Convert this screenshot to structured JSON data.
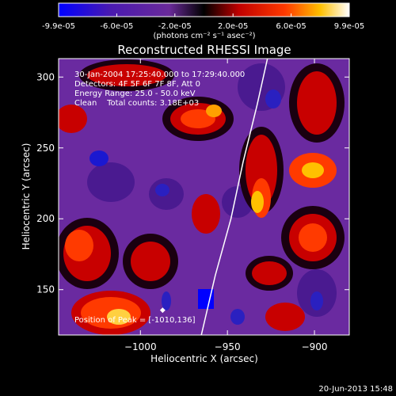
{
  "colorbar": {
    "ticks": [
      "-9.9e-05",
      "-6.0e-05",
      "-2.0e-05",
      "2.0e-05",
      "6.0e-05",
      "9.9e-05"
    ],
    "unit_label": "(photons cm⁻² s⁻¹ asec⁻²)",
    "colors": [
      "#0000ff",
      "#5a1aa8",
      "#6d2aa0",
      "#000000",
      "#c80000",
      "#ff3a00",
      "#ffc000",
      "#ffffff"
    ]
  },
  "chart_data": {
    "type": "heatmap",
    "title": "Reconstructed RHESSI Image",
    "xlabel": "Heliocentric X (arcsec)",
    "ylabel": "Heliocentric Y (arcsec)",
    "xlim": [
      -1047,
      -880
    ],
    "ylim": [
      118,
      313
    ],
    "xticks": [
      -1000,
      -950,
      -900
    ],
    "yticks": [
      150,
      200,
      250,
      300
    ],
    "annotations": [
      "30-Jan-2004 17:25:40.000 to 17:29:40.000",
      "Detectors: 4F 5F 6F 7F 8F, Att 0",
      "Energy Range: 25.0 - 50.0 keV",
      "Clean    Total counts: 3.18E+03"
    ],
    "peak_label": "Position of Peak = [-1010,136]",
    "peak": [
      -1010,
      136
    ],
    "limb_curve": [
      [
        -965,
        118
      ],
      [
        -957,
        160
      ],
      [
        -948,
        200
      ],
      [
        -941,
        240
      ],
      [
        -933,
        280
      ],
      [
        -927,
        313
      ]
    ]
  },
  "footer": {
    "timestamp": "20-Jun-2013 15:48"
  }
}
